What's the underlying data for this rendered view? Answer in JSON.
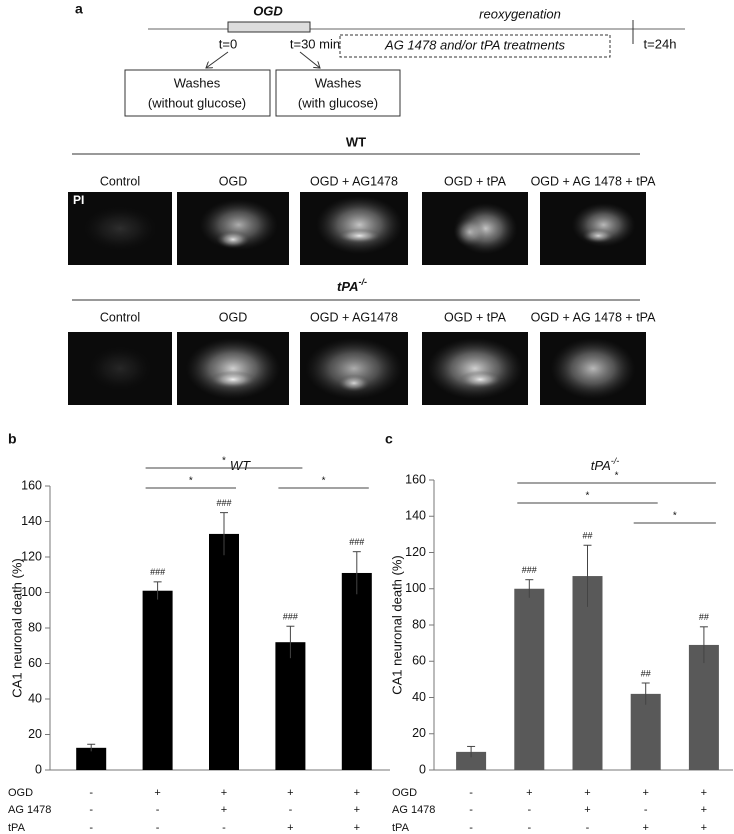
{
  "panel_a": {
    "label": "a",
    "timeline": {
      "ogd": "OGD",
      "reoxygenation": "reoxygenation",
      "t_start": "t=0",
      "t_ogd_end": "t=30 min",
      "t_end": "t=24h",
      "treatments": "AG 1478 and/or tPA treatments"
    },
    "washes": [
      {
        "title": "Washes",
        "detail": "(without glucose)"
      },
      {
        "title": "Washes",
        "detail": "(with glucose)"
      }
    ],
    "image_groups": [
      {
        "genotype": "WT",
        "stain": "PI",
        "columns": [
          "Control",
          "OGD",
          "OGD + AG1478",
          "OGD + tPA",
          "OGD + AG 1478 + tPA"
        ]
      },
      {
        "genotype": "tPA",
        "genotype_sup": "-/-",
        "columns": [
          "Control",
          "OGD",
          "OGD + AG1478",
          "OGD + tPA",
          "OGD + AG 1478 + tPA"
        ]
      }
    ]
  },
  "chart_data": [
    {
      "type": "bar",
      "label": "b",
      "title": "WT",
      "ylabel": "CA1 neuronal death (%)",
      "ylim": [
        0,
        160
      ],
      "yticks": [
        0,
        20,
        40,
        60,
        80,
        100,
        120,
        140,
        160
      ],
      "color": "#000000",
      "values": [
        12.5,
        101,
        133,
        72,
        111
      ],
      "errors": [
        2,
        5,
        12,
        9,
        12
      ],
      "annotations": [
        null,
        "###",
        "###",
        "###",
        "###"
      ],
      "conditions": [
        {
          "name": "OGD",
          "values": [
            "-",
            "+",
            "+",
            "+",
            "+"
          ]
        },
        {
          "name": "AG 1478",
          "values": [
            "-",
            "-",
            "+",
            "-",
            "+"
          ]
        },
        {
          "name": "tPA",
          "values": [
            "-",
            "-",
            "-",
            "+",
            "+"
          ]
        }
      ],
      "comparisons": [
        {
          "between": [
            1,
            3
          ],
          "label": "*"
        },
        {
          "between": [
            1,
            2
          ],
          "label": "*"
        },
        {
          "between": [
            3,
            4
          ],
          "label": "*"
        }
      ]
    },
    {
      "type": "bar",
      "label": "c",
      "title": "tPA",
      "title_sup": "-/-",
      "ylabel": "CA1 neuronal death (%)",
      "ylim": [
        0,
        160
      ],
      "yticks": [
        0,
        20,
        40,
        60,
        80,
        100,
        120,
        140,
        160
      ],
      "color": "#595959",
      "values": [
        10,
        100,
        107,
        42,
        69
      ],
      "errors": [
        3,
        5,
        17,
        6,
        10
      ],
      "annotations": [
        null,
        "###",
        "##",
        "##",
        "##"
      ],
      "conditions": [
        {
          "name": "OGD",
          "values": [
            "-",
            "+",
            "+",
            "+",
            "+"
          ]
        },
        {
          "name": "AG 1478",
          "values": [
            "-",
            "-",
            "+",
            "-",
            "+"
          ]
        },
        {
          "name": "tPA",
          "values": [
            "-",
            "-",
            "-",
            "+",
            "+"
          ]
        }
      ],
      "comparisons": [
        {
          "between": [
            1,
            4
          ],
          "label": "*"
        },
        {
          "between": [
            1,
            3
          ],
          "label": "*"
        },
        {
          "between": [
            3,
            4
          ],
          "label": "*"
        }
      ]
    }
  ]
}
